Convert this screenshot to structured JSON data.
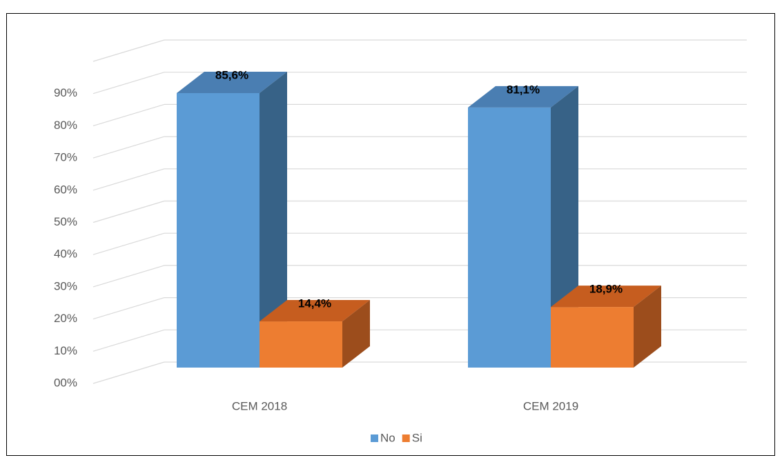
{
  "chart_data": {
    "type": "bar3d",
    "categories": [
      "CEM 2018",
      "CEM 2019"
    ],
    "series": [
      {
        "name": "No",
        "color": "#5b9bd5",
        "top": "#4a7eb2",
        "side": "#376287",
        "values": [
          85.6,
          81.1
        ],
        "value_labels": [
          "85,6%",
          "81,1%"
        ]
      },
      {
        "name": "Si",
        "color": "#ed7d31",
        "top": "#c65d1f",
        "side": "#9c4d1c",
        "values": [
          14.4,
          18.9
        ],
        "value_labels": [
          "14,4%",
          "18,9%"
        ]
      }
    ],
    "ylim": [
      0,
      100
    ],
    "yticks": [
      {
        "value": 0,
        "label": "00%"
      },
      {
        "value": 10,
        "label": "10%"
      },
      {
        "value": 20,
        "label": "20%"
      },
      {
        "value": 30,
        "label": "30%"
      },
      {
        "value": 40,
        "label": "40%"
      },
      {
        "value": 50,
        "label": "50%"
      },
      {
        "value": 60,
        "label": "60%"
      },
      {
        "value": 70,
        "label": "70%"
      },
      {
        "value": 80,
        "label": "80%"
      },
      {
        "value": 90,
        "label": "90%"
      }
    ],
    "grid": true,
    "legend": "bottom"
  }
}
